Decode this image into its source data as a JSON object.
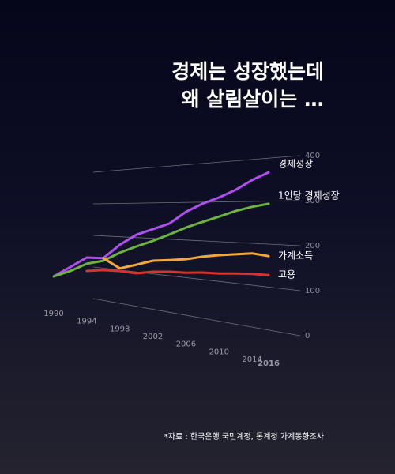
{
  "chart_data": {
    "type": "line",
    "title": [
      "경제는 성장했는데",
      "왜 살림살이는 …"
    ],
    "source": "*자료 : 한국은행 국민계정, 통계청 가계동향조사",
    "x": [
      1990,
      1992,
      1994,
      1996,
      1998,
      2000,
      2002,
      2004,
      2006,
      2008,
      2010,
      2012,
      2014,
      2016
    ],
    "xlim": [
      1990,
      2016
    ],
    "xticks": [
      1990,
      1994,
      1998,
      2002,
      2006,
      2010,
      2014,
      2016
    ],
    "ylim": [
      0,
      400
    ],
    "yticks": [
      0,
      100,
      200,
      300,
      400
    ],
    "series": [
      {
        "name": "경제성장",
        "color": "#b04ef0",
        "values": [
          52,
          91,
          128,
          131,
          176,
          208,
          226,
          243,
          275,
          296,
          311,
          329,
          351,
          367
        ]
      },
      {
        "name": "1인당 경제성장",
        "color": "#6cb43c",
        "values": [
          52,
          78,
          108,
          123,
          152,
          174,
          193,
          213,
          233,
          249,
          263,
          277,
          287,
          294
        ]
      },
      {
        "name": "가계소득",
        "color": "#f2a93a",
        "values": [
          null,
          null,
          null,
          131,
          105,
          121,
          137,
          143,
          149,
          159,
          166,
          171,
          176,
          172
        ]
      },
      {
        "name": "고용",
        "color": "#d8322e",
        "values": [
          null,
          null,
          85,
          94,
          97,
          96,
          106,
          111,
          113,
          118,
          120,
          124,
          127,
          128
        ]
      }
    ]
  }
}
